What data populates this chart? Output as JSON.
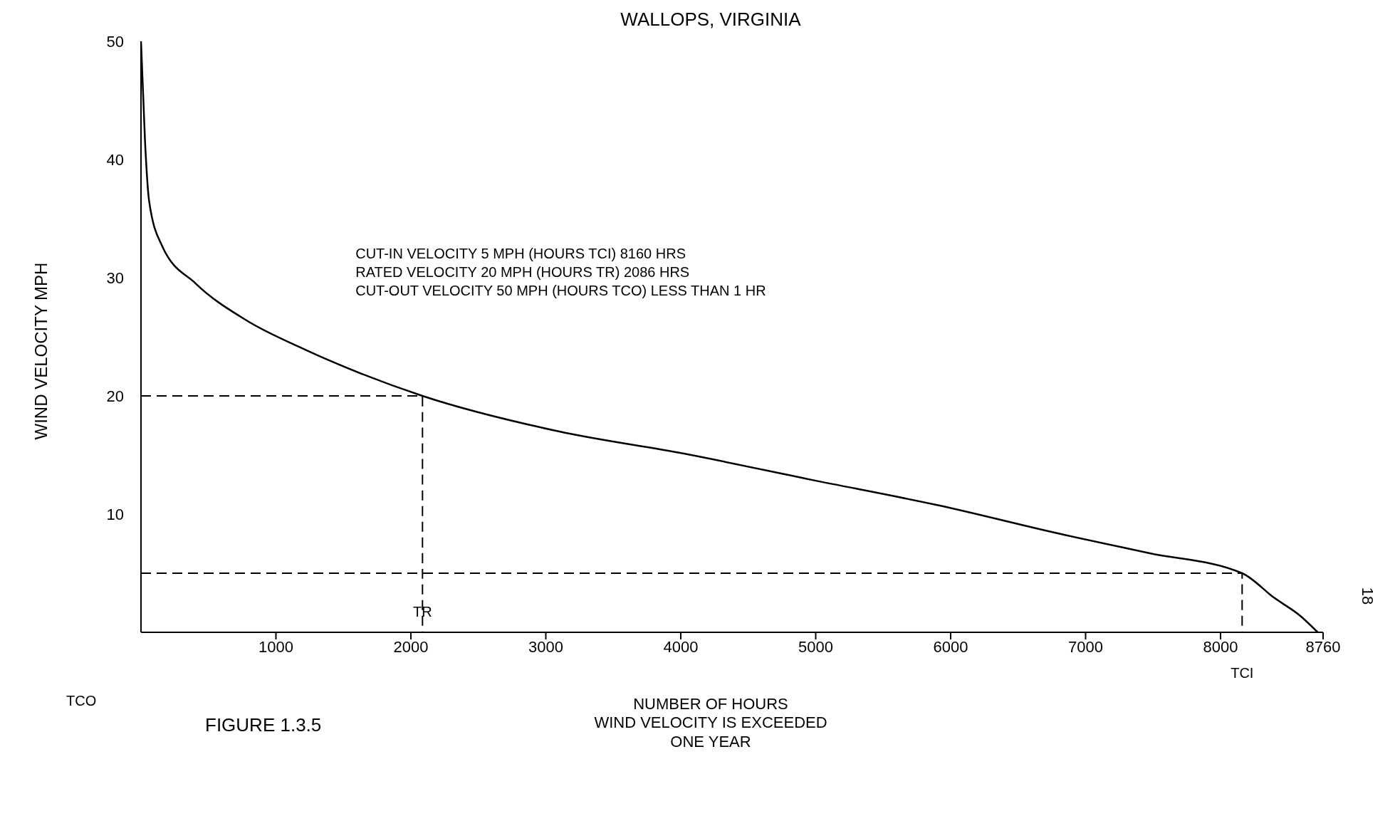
{
  "chart_data": {
    "type": "line",
    "title": "WALLOPS, VIRGINIA",
    "xlabel": "NUMBER OF HOURS\nWIND VELOCITY IS EXCEEDED\nONE YEAR",
    "ylabel": "WIND VELOCITY MPH",
    "xlim": [
      0,
      8760
    ],
    "xticks": [
      1000,
      2000,
      3000,
      4000,
      5000,
      6000,
      7000,
      8000,
      8760
    ],
    "ylim": [
      0,
      50
    ],
    "yticks": [
      10,
      20,
      30,
      40,
      50
    ],
    "grid": false,
    "marker": "none",
    "series": [
      {
        "color": "#000000",
        "line_style": "solid",
        "x": [
          0,
          30,
          60,
          156,
          406,
          780,
          1220,
          2086,
          3094,
          4030,
          4970,
          5906,
          6840,
          7470,
          8160,
          8400,
          8590,
          8720
        ],
        "values": [
          50,
          41.5,
          36.5,
          32.7,
          29.5,
          26.4,
          23.9,
          20,
          17,
          15.1,
          12.9,
          10.75,
          8.25,
          6.7,
          5,
          2.9,
          1.4,
          0
        ]
      },
      {
        "color": "#000000",
        "line_style": "dashed",
        "x": [
          0,
          2086,
          2086
        ],
        "values": [
          20,
          20,
          0
        ]
      },
      {
        "color": "#000000",
        "line_style": "dashed",
        "x": [
          0,
          8160,
          8160
        ],
        "values": [
          5,
          5,
          0
        ]
      }
    ],
    "annotations": [
      "CUT-IN VELOCITY 5 MPH (HOURS TCI)  8160 HRS",
      "RATED VELOCITY 20 MPH (HOURS TR)  2086 HRS",
      "CUT-OUT VELOCITY 50 MPH (HOURS TCO)  LESS THAN 1 HR",
      "FIGURE 1.3.5",
      "18",
      "TCO",
      {
        "text": "TR",
        "x": 2086,
        "y": 0
      },
      {
        "text": "TCI",
        "x": 8160,
        "y": 0
      }
    ]
  }
}
